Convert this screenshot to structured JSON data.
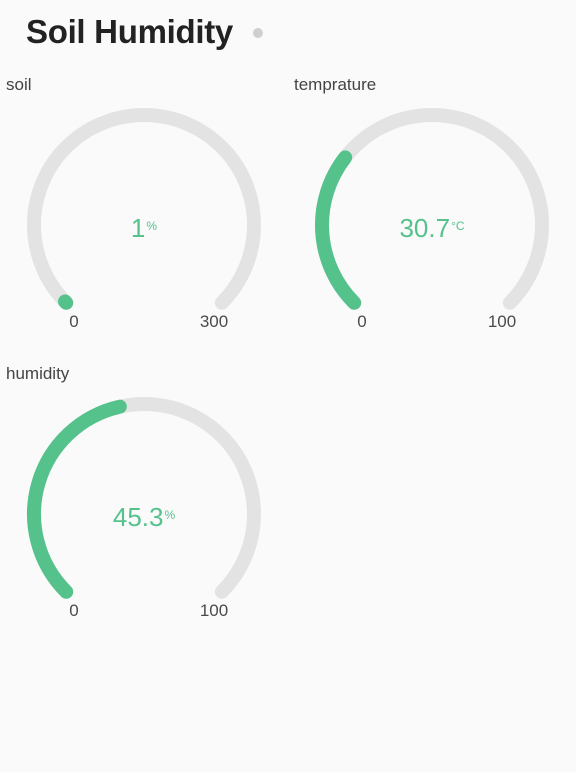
{
  "header": {
    "title": "Soil Humidity"
  },
  "colors": {
    "accent": "#55c28c",
    "track": "#e3e3e3"
  },
  "gauges": [
    {
      "label": "soil",
      "value": 1,
      "value_text": "1",
      "unit": "%",
      "min": 0,
      "max": 300,
      "min_text": "0",
      "max_text": "300"
    },
    {
      "label": "temprature",
      "value": 30.7,
      "value_text": "30.7",
      "unit": "°C",
      "min": 0,
      "max": 100,
      "min_text": "0",
      "max_text": "100"
    },
    {
      "label": "humidity",
      "value": 45.3,
      "value_text": "45.3",
      "unit": "%",
      "min": 0,
      "max": 100,
      "min_text": "0",
      "max_text": "100"
    }
  ]
}
